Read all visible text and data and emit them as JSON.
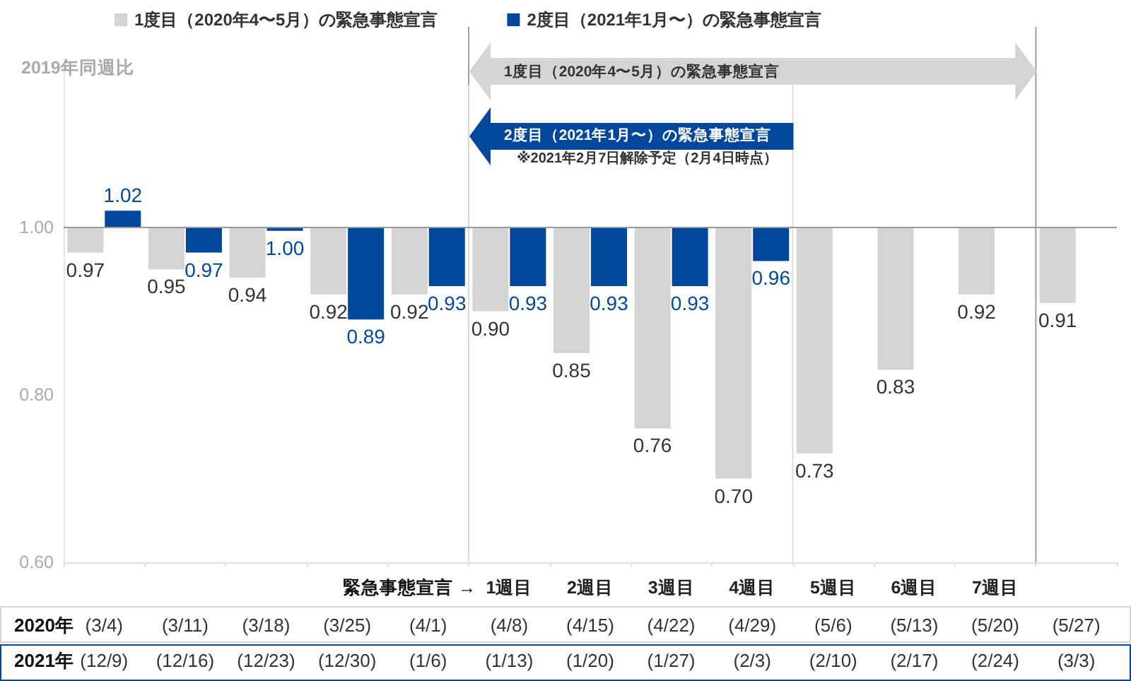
{
  "chart_data": {
    "type": "bar",
    "ylabel": "2019年同週比",
    "categories": [
      "(3/4) (12/9)",
      "(3/11) (12/16)",
      "(3/18) (12/23)",
      "(3/25) (12/30)",
      "(4/1) (1/6)",
      "1週目 (4/8) (1/13)",
      "2週目 (4/15) (1/20)",
      "3週目 (4/22) (1/27)",
      "4週目 (4/29) (2/3)",
      "5週目 (5/6) (2/10)",
      "6週目 (5/13) (2/17)",
      "7週目 (5/20) (2/24)",
      "(5/27) (3/3)"
    ],
    "series": [
      {
        "name": "1度目（2020年4〜5月）の緊急事態宣言",
        "color": "#d4d4d4",
        "base": [
          1,
          1,
          1,
          1,
          1,
          1,
          1,
          1,
          1,
          1,
          1,
          1,
          1
        ],
        "values": [
          -0.03,
          -0.05,
          -0.06,
          -0.08,
          -0.08,
          -0.1,
          -0.15,
          -0.24,
          -0.3,
          -0.27,
          -0.17,
          -0.08,
          -0.09
        ],
        "value_labels": [
          "0.97",
          "0.95",
          "0.94",
          "0.92",
          "0.92",
          "0.90",
          "0.85",
          "0.76",
          "0.70",
          "0.73",
          "0.83",
          "0.92",
          "0.91"
        ]
      },
      {
        "name": "2度目（2021年1月〜）の緊急事態宣言",
        "color": "#00479d",
        "base": [
          1,
          1,
          1,
          1,
          1,
          1,
          1,
          1,
          1,
          null,
          null,
          null,
          null
        ],
        "values": [
          0.02,
          -0.03,
          -0.004,
          -0.11,
          -0.07,
          -0.07,
          -0.07,
          -0.07,
          -0.04,
          null,
          null,
          null,
          null
        ],
        "value_labels": [
          "1.02",
          "0.97",
          "1.00",
          "0.89",
          "0.93",
          "0.93",
          "0.93",
          "0.93",
          "0.96",
          null,
          null,
          null,
          null
        ]
      }
    ],
    "ylim": [
      0.6,
      1.2
    ],
    "yticks": [
      {
        "value": 0.6,
        "label": "0.60"
      },
      {
        "value": 0.8,
        "label": "0.80"
      },
      {
        "value": 1,
        "label": "1.00"
      }
    ],
    "ref_lines": [
      {
        "axis": "y",
        "value": 1,
        "color": "#999999"
      }
    ],
    "annotations": [
      "緊急事態宣言 →",
      "2020年",
      "2021年",
      "1度目（2020年4〜5月）の緊急事態宣言",
      "2度目（2021年1月〜）の緊急事態宣言",
      "※2021年2月7日解除予定（2月4日時点）"
    ],
    "legend": "top left",
    "grid": false
  }
}
